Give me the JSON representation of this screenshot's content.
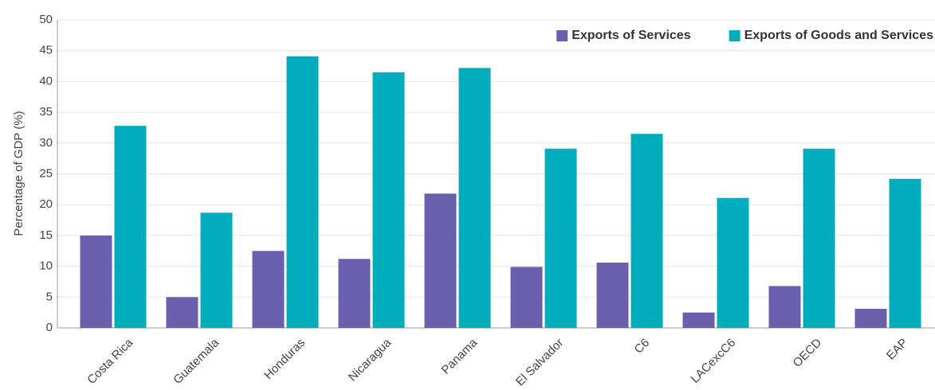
{
  "chart_data": {
    "type": "bar",
    "y_label": "Percentage of GDP (%)",
    "categories": [
      "Costa Rica",
      "Guatemala",
      "Honduras",
      "Nicaragua",
      "Panama",
      "El Salvador",
      "C6",
      "LACexcC6",
      "OECD",
      "EAP"
    ],
    "series": [
      {
        "name": "Exports of Services",
        "color": "#6a5fad",
        "values": [
          15.0,
          5.0,
          12.5,
          11.2,
          21.8,
          9.9,
          10.6,
          2.5,
          6.8,
          3.1
        ]
      },
      {
        "name": "Exports of Goods and Services",
        "color": "#00adbd",
        "values": [
          32.8,
          18.7,
          44.1,
          41.5,
          42.2,
          29.1,
          31.5,
          21.1,
          29.1,
          24.2
        ]
      }
    ],
    "ylim": [
      0,
      50
    ],
    "yticks": [
      0,
      5,
      10,
      15,
      20,
      25,
      30,
      35,
      40,
      45,
      50
    ],
    "grid": true,
    "legend": "top-right"
  }
}
